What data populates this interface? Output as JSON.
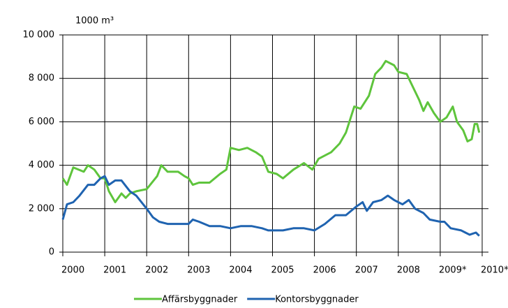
{
  "chart_data": {
    "type": "line",
    "unit_label": "1000 m³",
    "xlim": [
      2000,
      2010.15
    ],
    "xticks": [
      2000,
      2001,
      2002,
      2003,
      2004,
      2005,
      2006,
      2007,
      2008,
      {
        "value": 2009,
        "label": "2009*"
      },
      {
        "value": 2010,
        "label": "2010*"
      }
    ],
    "ylim": [
      0,
      10000
    ],
    "yticks": [
      0,
      {
        "value": 2000,
        "label": "2 000"
      },
      {
        "value": 4000,
        "label": "4 000"
      },
      {
        "value": 6000,
        "label": "6 000"
      },
      {
        "value": 8000,
        "label": "8 000"
      },
      {
        "value": 10000,
        "label": "10 000"
      }
    ],
    "grid": true,
    "legend": "bottom",
    "series": [
      {
        "name": "Affärsbyggnader",
        "color": "#5ec43c",
        "x": [
          2000.0,
          2000.1,
          2000.25,
          2000.5,
          2000.6,
          2000.75,
          2000.9,
          2001.0,
          2001.1,
          2001.25,
          2001.4,
          2001.5,
          2001.6,
          2001.75,
          2002.0,
          2002.25,
          2002.35,
          2002.5,
          2002.75,
          2002.9,
          2003.0,
          2003.1,
          2003.25,
          2003.5,
          2003.75,
          2003.9,
          2004.0,
          2004.2,
          2004.4,
          2004.6,
          2004.75,
          2004.9,
          2005.1,
          2005.25,
          2005.5,
          2005.75,
          2005.95,
          2006.1,
          2006.4,
          2006.6,
          2006.75,
          2006.95,
          2007.1,
          2007.3,
          2007.45,
          2007.6,
          2007.7,
          2007.9,
          2008.0,
          2008.2,
          2008.4,
          2008.5,
          2008.6,
          2008.7,
          2008.85,
          2009.0,
          2009.15,
          2009.3,
          2009.4,
          2009.55,
          2009.65,
          2009.75,
          2009.82,
          2009.88,
          2009.93
        ],
        "values": [
          3400,
          3100,
          3900,
          3700,
          4000,
          3800,
          3400,
          3400,
          2800,
          2300,
          2700,
          2500,
          2700,
          2800,
          2900,
          3500,
          4000,
          3700,
          3700,
          3500,
          3400,
          3100,
          3200,
          3200,
          3600,
          3800,
          4800,
          4700,
          4800,
          4600,
          4400,
          3700,
          3600,
          3400,
          3800,
          4100,
          3800,
          4300,
          4600,
          5000,
          5500,
          6700,
          6600,
          7200,
          8200,
          8500,
          8800,
          8600,
          8300,
          8200,
          7400,
          7000,
          6500,
          6900,
          6400,
          6000,
          6200,
          6700,
          6000,
          5600,
          5100,
          5200,
          5900,
          5900,
          5500
        ]
      },
      {
        "name": "Kontorsbyggnader",
        "color": "#1f63b0",
        "x": [
          2000.0,
          2000.1,
          2000.25,
          2000.4,
          2000.6,
          2000.75,
          2000.9,
          2001.0,
          2001.1,
          2001.25,
          2001.4,
          2001.6,
          2001.75,
          2002.0,
          2002.15,
          2002.3,
          2002.5,
          2002.75,
          2003.0,
          2003.1,
          2003.25,
          2003.5,
          2003.75,
          2004.0,
          2004.25,
          2004.5,
          2004.75,
          2004.9,
          2005.25,
          2005.5,
          2005.75,
          2006.0,
          2006.25,
          2006.5,
          2006.75,
          2007.0,
          2007.15,
          2007.25,
          2007.4,
          2007.6,
          2007.75,
          2007.9,
          2008.0,
          2008.1,
          2008.25,
          2008.4,
          2008.6,
          2008.75,
          2009.0,
          2009.1,
          2009.25,
          2009.5,
          2009.6,
          2009.7,
          2009.85,
          2009.93
        ],
        "values": [
          1500,
          2200,
          2300,
          2600,
          3100,
          3100,
          3400,
          3500,
          3100,
          3300,
          3300,
          2800,
          2600,
          2000,
          1600,
          1400,
          1300,
          1300,
          1300,
          1500,
          1400,
          1200,
          1200,
          1100,
          1200,
          1200,
          1100,
          1000,
          1000,
          1100,
          1100,
          1000,
          1300,
          1700,
          1700,
          2100,
          2300,
          1900,
          2300,
          2400,
          2600,
          2400,
          2300,
          2200,
          2400,
          2000,
          1800,
          1500,
          1400,
          1400,
          1100,
          1000,
          900,
          800,
          900,
          750
        ]
      }
    ]
  }
}
